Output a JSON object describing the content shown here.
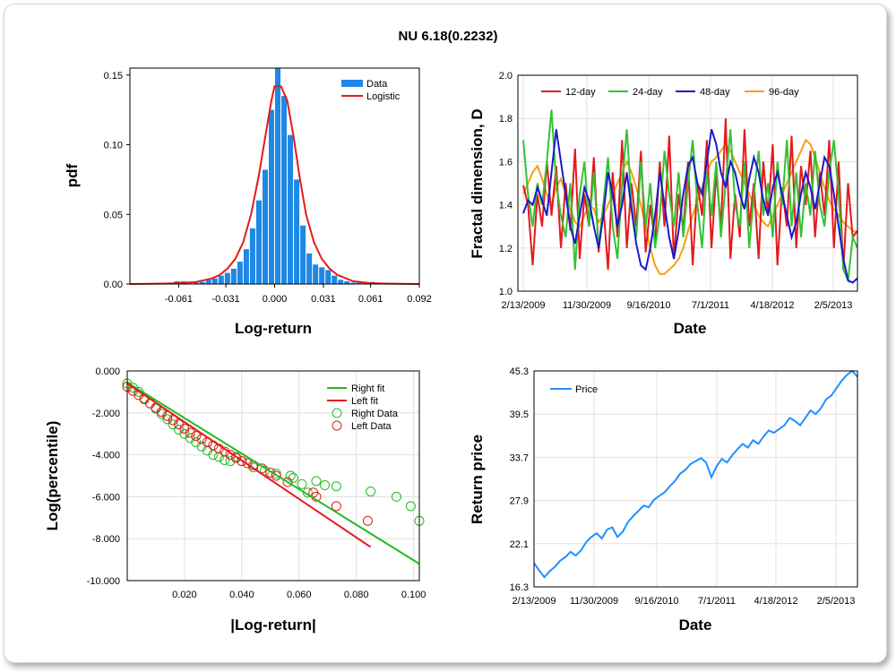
{
  "title": "NU 6.18(0.2232)",
  "chart_data": [
    {
      "type": "bar",
      "id": "pdf",
      "xlabel": "Log-return",
      "ylabel": "pdf",
      "xticks": [
        "-0.061",
        "-0.031",
        "0.000",
        "0.031",
        "0.061",
        "0.092"
      ],
      "xtick_values": [
        -0.061,
        -0.031,
        0.0,
        0.031,
        0.061,
        0.092
      ],
      "xlim": [
        -0.092,
        0.092
      ],
      "yticks": [
        "0.00",
        "0.05",
        "0.10",
        "0.15"
      ],
      "ylim": [
        0,
        0.155
      ],
      "bin_width": 0.004,
      "series": [
        {
          "name": "Data",
          "bin_centers": [
            -0.066,
            -0.062,
            -0.058,
            -0.054,
            -0.05,
            -0.046,
            -0.042,
            -0.038,
            -0.034,
            -0.03,
            -0.026,
            -0.022,
            -0.018,
            -0.014,
            -0.01,
            -0.006,
            -0.002,
            0.002,
            0.006,
            0.01,
            0.014,
            0.018,
            0.022,
            0.026,
            0.03,
            0.034,
            0.038,
            0.042,
            0.046,
            0.05,
            0.054,
            0.058,
            0.062,
            0.066,
            0.07
          ],
          "values": [
            0.0005,
            0.002,
            0.002,
            0.0005,
            0.001,
            0.0015,
            0.003,
            0.004,
            0.006,
            0.008,
            0.011,
            0.016,
            0.025,
            0.04,
            0.06,
            0.082,
            0.125,
            0.158,
            0.135,
            0.107,
            0.075,
            0.042,
            0.022,
            0.014,
            0.012,
            0.01,
            0.006,
            0.003,
            0.002,
            0.001,
            0.001,
            0.0005,
            0.0015,
            0.0005,
            0.0005
          ]
        },
        {
          "name": "Logistic",
          "x": [
            -0.092,
            -0.07,
            -0.06,
            -0.05,
            -0.04,
            -0.035,
            -0.03,
            -0.025,
            -0.02,
            -0.015,
            -0.01,
            -0.005,
            -0.002,
            0.0,
            0.004,
            0.008,
            0.012,
            0.016,
            0.02,
            0.025,
            0.03,
            0.035,
            0.04,
            0.05,
            0.06,
            0.07,
            0.092
          ],
          "values": [
            0.0,
            0.0003,
            0.0007,
            0.0015,
            0.004,
            0.0065,
            0.011,
            0.018,
            0.03,
            0.05,
            0.078,
            0.112,
            0.132,
            0.142,
            0.142,
            0.132,
            0.106,
            0.076,
            0.05,
            0.03,
            0.018,
            0.011,
            0.0065,
            0.002,
            0.0007,
            0.0003,
            0.0
          ]
        }
      ]
    },
    {
      "type": "line",
      "id": "fractal",
      "xlabel": "Date",
      "ylabel": "Fractal dimension, D",
      "xticks": [
        "2/13/2009",
        "11/30/2009",
        "9/16/2010",
        "7/1/2011",
        "4/18/2012",
        "2/5/2013"
      ],
      "yticks": [
        "1.0",
        "1.2",
        "1.4",
        "1.6",
        "1.8",
        "2.0"
      ],
      "ylim": [
        1.0,
        2.0
      ],
      "series": [
        {
          "name": "12-day",
          "values": [
            1.49,
            1.4,
            1.12,
            1.45,
            1.3,
            1.6,
            1.35,
            1.58,
            1.2,
            1.5,
            1.28,
            1.66,
            1.15,
            1.45,
            1.3,
            1.62,
            1.18,
            1.4,
            1.1,
            1.55,
            1.25,
            1.7,
            1.2,
            1.5,
            1.3,
            1.65,
            1.18,
            1.4,
            1.22,
            1.6,
            1.3,
            1.72,
            1.15,
            1.45,
            1.28,
            1.6,
            1.12,
            1.5,
            1.35,
            1.7,
            1.2,
            1.55,
            1.3,
            1.8,
            1.15,
            1.45,
            1.25,
            1.75,
            1.3,
            1.5,
            1.15,
            1.6,
            1.35,
            1.68,
            1.12,
            1.48,
            1.3,
            1.72,
            1.2,
            1.58,
            1.4,
            1.65,
            1.25,
            1.55,
            1.35,
            1.7,
            1.2,
            1.6,
            1.1,
            1.5,
            1.25,
            1.28
          ]
        },
        {
          "name": "24-day",
          "values": [
            1.7,
            1.45,
            1.3,
            1.5,
            1.4,
            1.6,
            1.84,
            1.5,
            1.35,
            1.25,
            1.5,
            1.1,
            1.45,
            1.6,
            1.3,
            1.55,
            1.2,
            1.4,
            1.62,
            1.3,
            1.15,
            1.5,
            1.75,
            1.4,
            1.25,
            1.6,
            1.3,
            1.5,
            1.2,
            1.35,
            1.65,
            1.45,
            1.3,
            1.55,
            1.25,
            1.5,
            1.7,
            1.4,
            1.2,
            1.55,
            1.35,
            1.6,
            1.25,
            1.5,
            1.75,
            1.4,
            1.3,
            1.6,
            1.2,
            1.45,
            1.65,
            1.35,
            1.5,
            1.25,
            1.6,
            1.4,
            1.7,
            1.3,
            1.55,
            1.25,
            1.5,
            1.35,
            1.65,
            1.4,
            1.3,
            1.55,
            1.7,
            1.45,
            1.1,
            1.05,
            1.25,
            1.2
          ]
        },
        {
          "name": "48-day",
          "values": [
            1.36,
            1.42,
            1.4,
            1.48,
            1.42,
            1.35,
            1.55,
            1.75,
            1.6,
            1.45,
            1.3,
            1.22,
            1.35,
            1.48,
            1.42,
            1.3,
            1.2,
            1.35,
            1.55,
            1.45,
            1.3,
            1.4,
            1.55,
            1.38,
            1.22,
            1.12,
            1.1,
            1.2,
            1.35,
            1.55,
            1.4,
            1.25,
            1.15,
            1.28,
            1.45,
            1.58,
            1.62,
            1.5,
            1.45,
            1.6,
            1.75,
            1.68,
            1.55,
            1.48,
            1.6,
            1.55,
            1.45,
            1.38,
            1.52,
            1.62,
            1.55,
            1.42,
            1.35,
            1.48,
            1.55,
            1.45,
            1.35,
            1.25,
            1.32,
            1.45,
            1.55,
            1.48,
            1.38,
            1.5,
            1.62,
            1.58,
            1.45,
            1.3,
            1.15,
            1.05,
            1.04,
            1.06
          ]
        },
        {
          "name": "96-day",
          "values": [
            1.45,
            1.5,
            1.55,
            1.58,
            1.52,
            1.45,
            1.4,
            1.48,
            1.52,
            1.45,
            1.38,
            1.32,
            1.3,
            1.35,
            1.4,
            1.38,
            1.32,
            1.35,
            1.4,
            1.45,
            1.5,
            1.55,
            1.6,
            1.55,
            1.48,
            1.4,
            1.3,
            1.2,
            1.12,
            1.08,
            1.08,
            1.1,
            1.12,
            1.15,
            1.2,
            1.28,
            1.35,
            1.42,
            1.48,
            1.55,
            1.6,
            1.62,
            1.65,
            1.68,
            1.65,
            1.6,
            1.55,
            1.5,
            1.45,
            1.4,
            1.35,
            1.32,
            1.3,
            1.35,
            1.4,
            1.45,
            1.5,
            1.55,
            1.6,
            1.65,
            1.7,
            1.68,
            1.62,
            1.55,
            1.48,
            1.42,
            1.38,
            1.35,
            1.32,
            1.3,
            1.28,
            1.27
          ]
        }
      ],
      "colors": {
        "12-day": "#e41a1c",
        "24-day": "#33c233",
        "48-day": "#1a1acc",
        "96-day": "#f5a00f"
      }
    },
    {
      "type": "scatter",
      "id": "tail",
      "xlabel": "|Log-return|",
      "ylabel": "Log(percentile)",
      "xticks": [
        "0.020",
        "0.040",
        "0.060",
        "0.080",
        "0.100"
      ],
      "xtick_values": [
        0.02,
        0.04,
        0.06,
        0.08,
        0.1
      ],
      "xlim": [
        0.0,
        0.102
      ],
      "yticks": [
        "0.000",
        "-2.000",
        "-4.000",
        "-6.000",
        "-8.000",
        "-10.000"
      ],
      "ytick_values": [
        0,
        -2,
        -4,
        -6,
        -8,
        -10
      ],
      "ylim": [
        -10,
        0
      ],
      "series": [
        {
          "name": "Right fit",
          "x": [
            0.0,
            0.102
          ],
          "y": [
            -0.55,
            -9.2
          ]
        },
        {
          "name": "Left fit",
          "x": [
            0.0,
            0.085
          ],
          "y": [
            -0.6,
            -8.4
          ]
        },
        {
          "name": "Right Data",
          "x": [
            0.0,
            0.002,
            0.004,
            0.006,
            0.008,
            0.01,
            0.012,
            0.014,
            0.016,
            0.018,
            0.02,
            0.022,
            0.024,
            0.026,
            0.028,
            0.03,
            0.032,
            0.034,
            0.036,
            0.038,
            0.04,
            0.044,
            0.048,
            0.052,
            0.057,
            0.058,
            0.061,
            0.063,
            0.066,
            0.069,
            0.073,
            0.085,
            0.094,
            0.099,
            0.102
          ],
          "y": [
            -0.6,
            -0.8,
            -1.0,
            -1.3,
            -1.55,
            -1.8,
            -2.05,
            -2.3,
            -2.55,
            -2.8,
            -3.0,
            -3.2,
            -3.4,
            -3.6,
            -3.8,
            -4.0,
            -4.1,
            -4.25,
            -4.3,
            -4.1,
            -4.3,
            -4.6,
            -4.75,
            -4.9,
            -5.0,
            -5.1,
            -5.4,
            -5.8,
            -5.25,
            -5.45,
            -5.5,
            -5.75,
            -6.0,
            -6.45,
            -7.15
          ]
        },
        {
          "name": "Left Data",
          "x": [
            0.0,
            0.002,
            0.004,
            0.006,
            0.008,
            0.01,
            0.012,
            0.014,
            0.016,
            0.018,
            0.02,
            0.022,
            0.024,
            0.026,
            0.028,
            0.03,
            0.032,
            0.034,
            0.036,
            0.038,
            0.04,
            0.042,
            0.044,
            0.047,
            0.05,
            0.052,
            0.056,
            0.065,
            0.066,
            0.073,
            0.084
          ],
          "y": [
            -0.75,
            -0.95,
            -1.15,
            -1.35,
            -1.55,
            -1.75,
            -1.95,
            -2.15,
            -2.35,
            -2.55,
            -2.75,
            -2.95,
            -3.1,
            -3.25,
            -3.4,
            -3.55,
            -3.7,
            -3.85,
            -4.0,
            -4.15,
            -4.3,
            -4.4,
            -4.5,
            -4.65,
            -4.85,
            -5.0,
            -5.3,
            -5.8,
            -6.0,
            -6.45,
            -7.15
          ]
        }
      ],
      "colors": {
        "Right fit": "#22bb22",
        "Left fit": "#e41a1c",
        "Right Data": "#22bb22",
        "Left Data": "#e41a1c"
      }
    },
    {
      "type": "line",
      "id": "price",
      "xlabel": "Date",
      "ylabel": "Return price",
      "xticks": [
        "2/13/2009",
        "11/30/2009",
        "9/16/2010",
        "7/1/2011",
        "4/18/2012",
        "2/5/2013"
      ],
      "yticks": [
        "16.3",
        "22.1",
        "27.9",
        "33.7",
        "39.5",
        "45.3"
      ],
      "ytick_values": [
        16.3,
        22.1,
        27.9,
        33.7,
        39.5,
        45.3
      ],
      "ylim": [
        16.3,
        45.3
      ],
      "series": [
        {
          "name": "Price",
          "values": [
            19.5,
            18.5,
            17.6,
            18.4,
            19.0,
            19.8,
            20.3,
            21.0,
            20.5,
            21.2,
            22.3,
            23.0,
            23.5,
            22.8,
            24.0,
            24.3,
            23.0,
            23.7,
            25.0,
            25.8,
            26.5,
            27.2,
            27.0,
            28.0,
            28.5,
            29.0,
            29.8,
            30.5,
            31.5,
            32.0,
            32.8,
            33.2,
            33.6,
            33.0,
            31.0,
            32.5,
            33.5,
            33.0,
            34.0,
            34.8,
            35.5,
            35.0,
            36.0,
            35.5,
            36.5,
            37.3,
            37.0,
            37.5,
            38.0,
            39.0,
            38.6,
            38.0,
            39.0,
            40.0,
            39.5,
            40.3,
            41.5,
            42.0,
            43.0,
            44.0,
            44.8,
            45.3,
            44.5
          ]
        }
      ],
      "colors": {
        "Price": "#1e90ff"
      }
    }
  ]
}
